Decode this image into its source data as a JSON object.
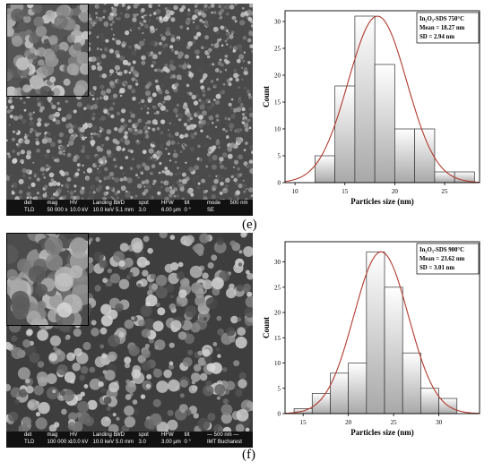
{
  "panels": [
    {
      "letter": "(e)",
      "sem_footer": {
        "cols": [
          "det",
          "mag",
          "HV",
          "Landing E",
          "WD",
          "spot",
          "HFW",
          "tilt",
          "mode",
          "500 nm"
        ],
        "vals": [
          "TLD",
          "50 000 x",
          "10.0 kV",
          "10.0 keV",
          "5.1 mm",
          "3.0",
          "6.00 μm",
          "0 °",
          "SE",
          ""
        ]
      }
    },
    {
      "letter": "(f)",
      "sem_footer": {
        "cols": [
          "det",
          "mag",
          "HV",
          "Landing E",
          "WD",
          "spot",
          "HFW",
          "tilt",
          "— 500 nm —",
          ""
        ],
        "vals": [
          "TLD",
          "100 000 x",
          "10.0 kV",
          "10.0 keV",
          "5.0 mm",
          "3.0",
          "3.00 μm",
          "0 °",
          "IMT Bucharest",
          ""
        ]
      }
    }
  ],
  "chart_data": [
    {
      "type": "bar",
      "xlabel": "Particles size (nm)",
      "ylabel": "Count",
      "xlim": [
        9,
        28.5
      ],
      "ylim": [
        0,
        32
      ],
      "xticks": [
        10,
        15,
        20,
        25
      ],
      "yticks": [
        0,
        5,
        10,
        15,
        20,
        25,
        30
      ],
      "bin_edges": [
        12,
        14,
        16,
        18,
        20,
        22,
        24,
        26,
        28
      ],
      "values": [
        5,
        18,
        31,
        22,
        10,
        10,
        2,
        2
      ],
      "fit": {
        "mean": 18.27,
        "sd": 2.94,
        "peak": 31
      },
      "legend": {
        "title": "In₂O₃-SDS 750°C",
        "mean": "Mean = 18.27 nm",
        "sd": "SD = 2.94 nm"
      },
      "colors": {
        "bar_fill": "#e6e6e6",
        "fit": "#b03a2e"
      }
    },
    {
      "type": "bar",
      "xlabel": "Particles size (nm)",
      "ylabel": "Count",
      "xlim": [
        13,
        34.5
      ],
      "ylim": [
        0,
        34
      ],
      "xticks": [
        15,
        20,
        25,
        30
      ],
      "yticks": [
        0,
        5,
        10,
        15,
        20,
        25,
        30
      ],
      "bin_edges": [
        14,
        16,
        18,
        20,
        22,
        24,
        26,
        28,
        30,
        32
      ],
      "values": [
        1,
        4,
        8,
        10,
        32,
        25,
        12,
        5,
        3
      ],
      "fit": {
        "mean": 23.62,
        "sd": 3.01,
        "peak": 32
      },
      "legend": {
        "title": "In₂O₃-SDS 900°C",
        "mean": "Mean = 23.62 nm",
        "sd": "SD = 3.01 nm"
      },
      "colors": {
        "bar_fill": "#e6e6e6",
        "fit": "#b03a2e"
      }
    }
  ]
}
